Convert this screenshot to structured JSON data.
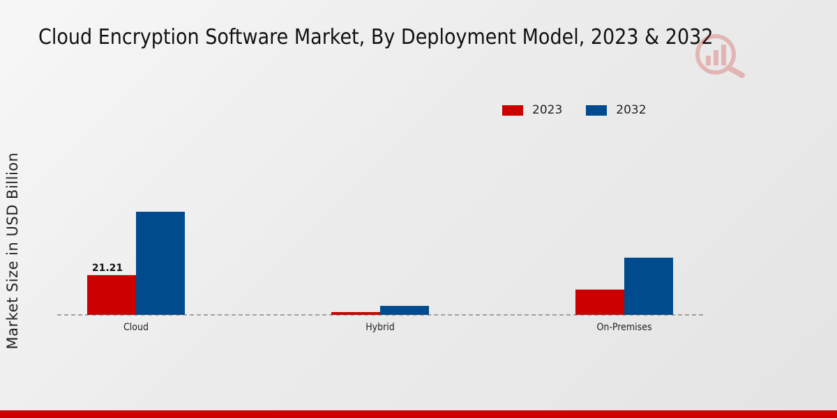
{
  "chart_data": {
    "type": "bar",
    "title": "Cloud Encryption Software Market, By Deployment Model, 2023 & 2032",
    "xlabel": "",
    "ylabel": "Market Size in USD Billion",
    "categories": [
      "Cloud",
      "Hybrid",
      "On-Premises"
    ],
    "series": [
      {
        "name": "2023",
        "color": "#cc0000",
        "values": [
          21.21,
          1.5,
          13.5
        ]
      },
      {
        "name": "2032",
        "color": "#004b8d",
        "values": [
          55.0,
          4.8,
          30.5
        ]
      }
    ],
    "data_labels": [
      {
        "series": "2023",
        "category": "Cloud",
        "text": "21.21"
      }
    ],
    "ylim": [
      0,
      65
    ],
    "grid": false,
    "baseline_style": "dashed",
    "legend_position": "top-right"
  },
  "watermark": {
    "icon": "bar-chart-magnifier-icon",
    "color": "#cc0000"
  },
  "footer": {
    "color": "#cc0000"
  }
}
